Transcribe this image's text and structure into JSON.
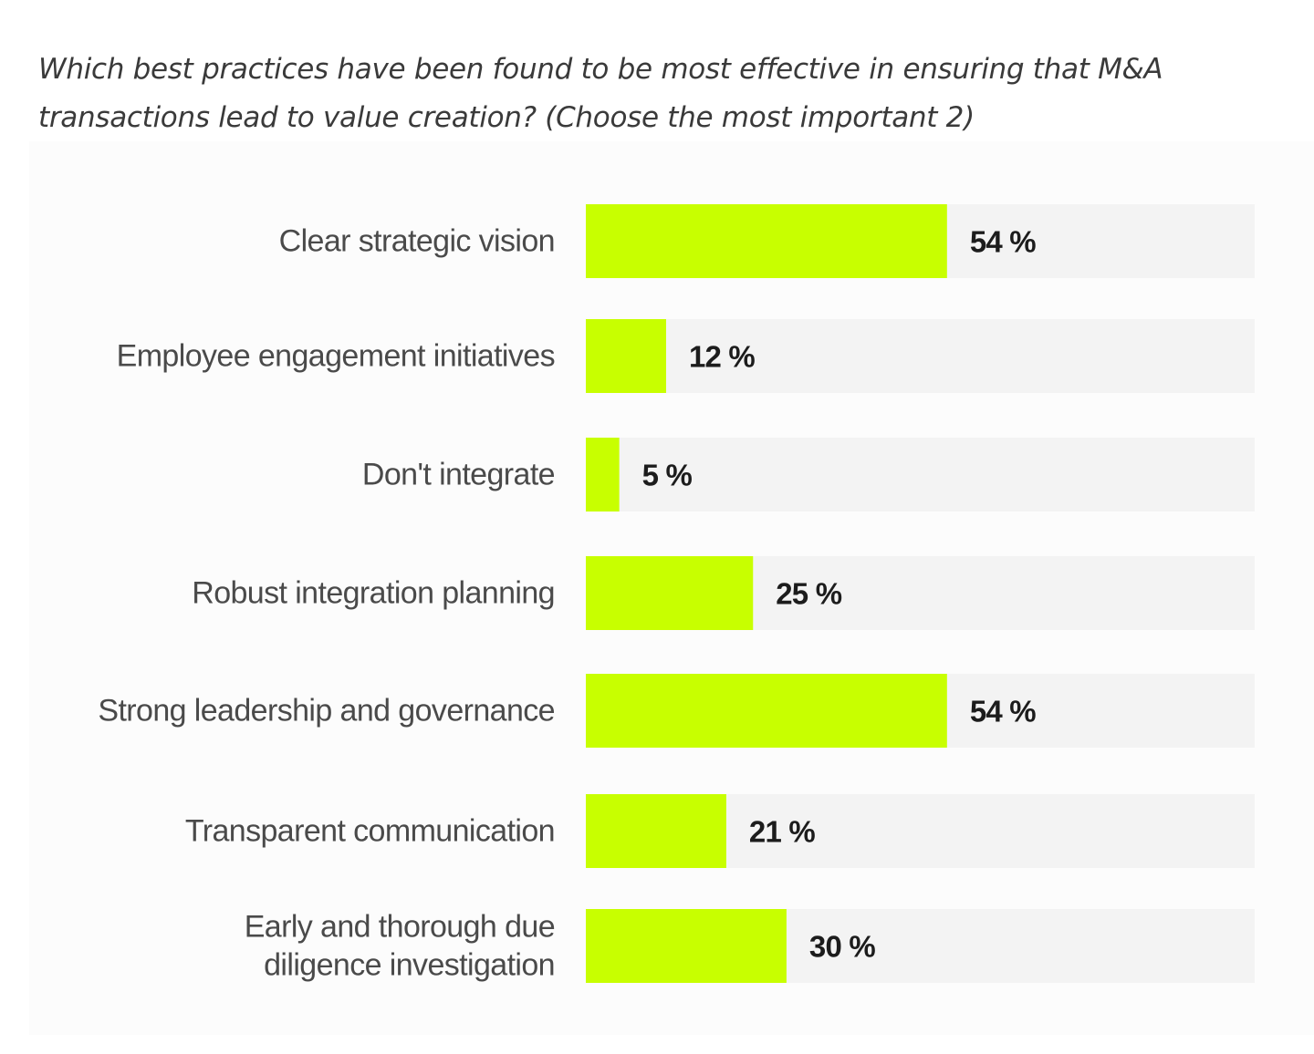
{
  "question": {
    "text": "Which best practices have been found to be most effective in ensuring that M&A transactions lead to value creation? (Choose the most important 2)"
  },
  "colors": {
    "bar": "#c8ff00",
    "track": "#f3f3f3",
    "panel": "#fcfcfc",
    "label_text": "#4a4a4a",
    "value_text": "#1c1c1c"
  },
  "chart_data": {
    "type": "bar",
    "orientation": "horizontal",
    "title": "Which best practices have been found to be most effective in ensuring that M&A transactions lead to value creation? (Choose the most important 2)",
    "xlabel": "",
    "ylabel": "",
    "xlim": [
      0,
      100
    ],
    "grid": false,
    "legend": "none",
    "unit": "%",
    "categories": [
      [
        "Clear strategic vision"
      ],
      [
        "Employee engagement initiatives"
      ],
      [
        "Don't integrate"
      ],
      [
        "Robust integration planning"
      ],
      [
        "Strong leadership and governance"
      ],
      [
        "Transparent communication"
      ],
      [
        "Early and thorough due",
        "diligence investigation"
      ]
    ],
    "values": [
      54,
      12,
      5,
      25,
      54,
      21,
      30
    ],
    "value_labels": [
      "54 %",
      "12 %",
      "5 %",
      "25 %",
      "54 %",
      "21 %",
      "30 %"
    ]
  }
}
